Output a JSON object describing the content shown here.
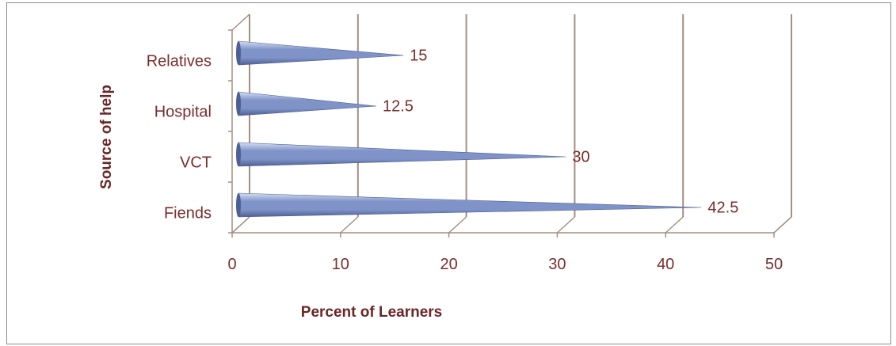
{
  "chart_data": {
    "type": "bar",
    "orientation": "horizontal",
    "style": "3d-cone",
    "categories": [
      "Fiends",
      "VCT",
      "Hospital",
      "Relatives"
    ],
    "values": [
      42.5,
      30,
      12.5,
      15
    ],
    "data_labels": [
      "42.5",
      "30",
      "12.5",
      "15"
    ],
    "xlabel": "Percent  of  Learners",
    "ylabel": "Source of help",
    "xlim": [
      0,
      50
    ],
    "x_ticks": [
      0,
      10,
      20,
      30,
      40,
      50
    ],
    "x_tick_labels": [
      "0",
      "10",
      "20",
      "30",
      "40",
      "50"
    ],
    "grid": true,
    "legend": "none",
    "colors": {
      "bar": "#7f93c8",
      "bar_highlight": "#d5def2",
      "bar_shadow": "#4e5f92",
      "gridline": "#a58f82",
      "text": "#7b2c2c",
      "axis_title": "#6b2525"
    }
  }
}
